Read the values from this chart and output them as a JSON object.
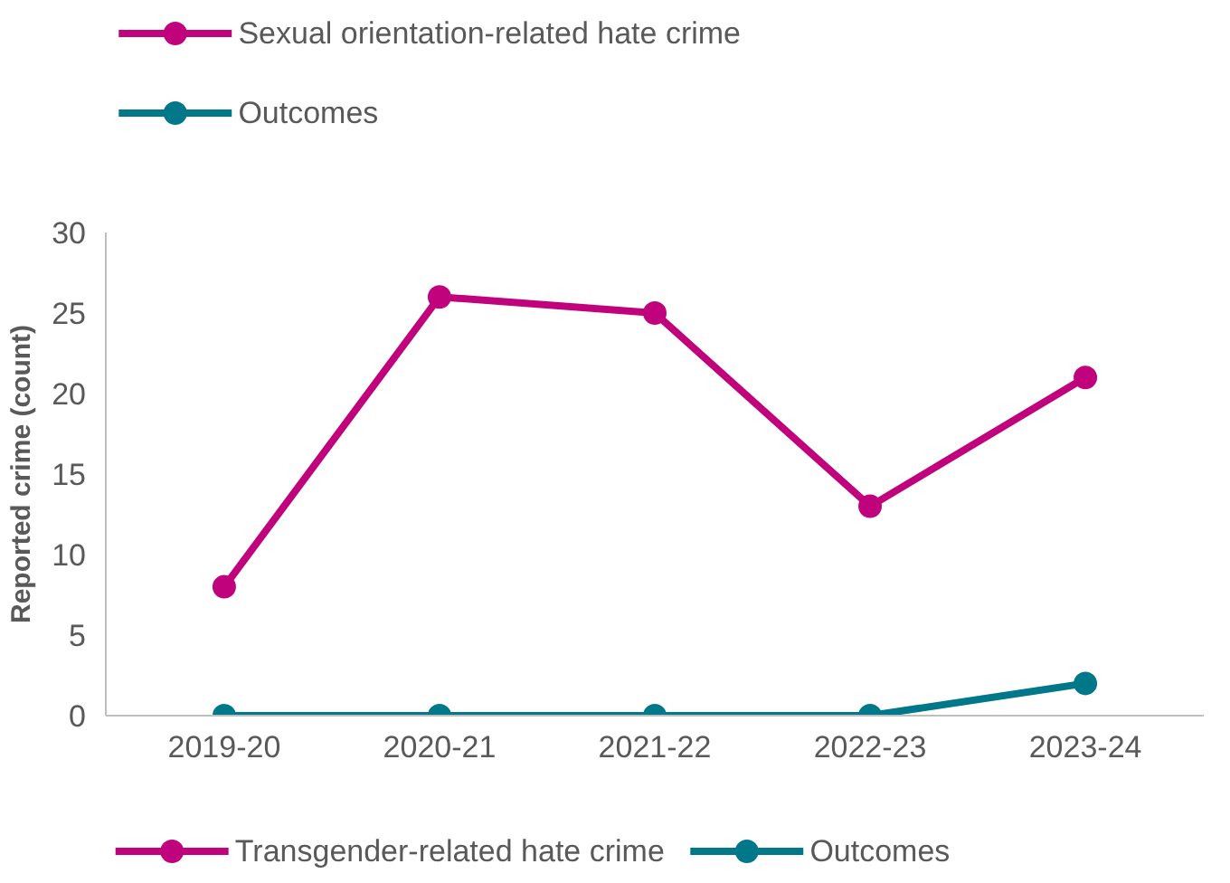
{
  "chart_data": {
    "type": "line",
    "ylabel": "Reported crime (count)",
    "categories": [
      "2019-20",
      "2020-21",
      "2021-22",
      "2022-23",
      "2023-24"
    ],
    "series": [
      {
        "name": "Sexual orientation-related hate crime",
        "color": "#c0037d",
        "values": [
          null,
          null,
          null,
          null,
          null
        ]
      },
      {
        "name": "Outcomes",
        "color": "#00788a",
        "values": [
          null,
          null,
          null,
          null,
          null
        ]
      },
      {
        "name": "Transgender-related hate crime",
        "color": "#c0037d",
        "values": [
          8,
          26,
          25,
          13,
          21
        ]
      },
      {
        "name": "Outcomes",
        "color": "#00788a",
        "values": [
          0,
          0,
          0,
          0,
          2
        ]
      }
    ],
    "ylim": [
      0,
      30
    ],
    "yticks": [
      0,
      5,
      10,
      15,
      20,
      25,
      30
    ],
    "marker": "circle",
    "line_style": "solid",
    "grid": false,
    "legend": "top left"
  }
}
